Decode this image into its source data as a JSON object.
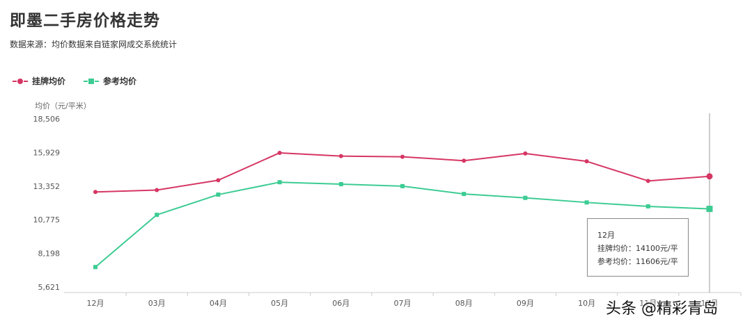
{
  "title": "即墨二手房价格走势",
  "subtitle": "数据来源：均价数据来自链家网成交系统统计",
  "watermark": "头条 @精彩青岛",
  "colors": {
    "listing": "#d63663",
    "reference": "#3ccc93",
    "axis": "#999999",
    "grid": "#dddddd"
  },
  "chart_data": {
    "type": "line",
    "ylabel": "均价（元/平米）",
    "categories": [
      "12月",
      "03月",
      "04月",
      "05月",
      "06月",
      "07月",
      "08月",
      "09月",
      "10月",
      "11月",
      "12月"
    ],
    "yticks": [
      "18,506",
      "15,929",
      "13,352",
      "10,775",
      "8,198",
      "5,621"
    ],
    "ylim": [
      5621,
      18506
    ],
    "grid": false,
    "legend_position": "top-left",
    "series": [
      {
        "name": "挂牌均价",
        "marker": "circle",
        "color": "#d63663",
        "values": [
          12900,
          13050,
          13800,
          15900,
          15650,
          15600,
          15300,
          15850,
          15250,
          13750,
          14100
        ]
      },
      {
        "name": "参考均价",
        "marker": "square",
        "color": "#3ccc93",
        "values": [
          7150,
          11150,
          12700,
          13650,
          13500,
          13350,
          12750,
          12450,
          12100,
          11800,
          11606
        ]
      }
    ],
    "tooltip": {
      "title": "12月",
      "lines": [
        "挂牌均价：14100元/平",
        "参考均价：11606元/平"
      ]
    }
  }
}
